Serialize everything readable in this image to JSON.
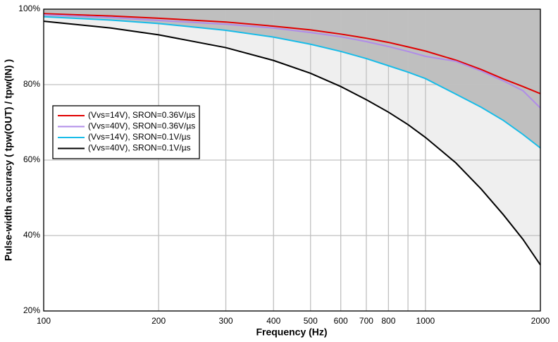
{
  "chart_data": {
    "type": "line",
    "xlabel": "Frequency (Hz)",
    "ylabel": "Pulse-width accuracy ( tpw(OUT) / tpw(IN) )",
    "xscale": "log",
    "x": [
      100,
      150,
      200,
      300,
      400,
      500,
      600,
      700,
      800,
      900,
      1000,
      1200,
      1400,
      1600,
      1800,
      2000
    ],
    "series": [
      {
        "name": "(Vvs=14V), SRON=0.36V/µs",
        "color": "#e00000",
        "values": [
          98.8,
          98.2,
          97.6,
          96.6,
          95.5,
          94.5,
          93.4,
          92.3,
          91.2,
          90.0,
          88.9,
          86.5,
          84.0,
          81.5,
          79.5,
          77.6
        ]
      },
      {
        "name": "(Vvs=40V), SRON=0.36V/µs",
        "color": "#b08ce8",
        "values": [
          98.5,
          97.8,
          97.0,
          96.0,
          95.0,
          93.8,
          92.7,
          91.4,
          90.1,
          88.8,
          87.5,
          86.2,
          83.6,
          81.0,
          78.4,
          73.8
        ]
      },
      {
        "name": "(Vvs=14V), SRON=0.1V/µs",
        "color": "#18bce8",
        "values": [
          98.0,
          97.1,
          96.2,
          94.4,
          92.6,
          90.7,
          88.8,
          86.9,
          85.0,
          83.3,
          81.6,
          77.5,
          74.0,
          70.5,
          66.8,
          63.2
        ]
      },
      {
        "name": "(Vvs=40V), SRON=0.1V/µs",
        "color": "#000000",
        "values": [
          96.8,
          95.0,
          93.2,
          89.8,
          86.4,
          83.0,
          79.5,
          76.0,
          72.7,
          69.4,
          66.0,
          59.3,
          52.3,
          45.5,
          39.0,
          32.2
        ]
      }
    ],
    "xlim": [
      100,
      2000
    ],
    "xticks": [
      100,
      200,
      300,
      400,
      500,
      600,
      700,
      800,
      1000,
      2000
    ],
    "x_minor_ticks": [
      900
    ],
    "ylim": [
      20,
      100
    ],
    "yticks": [
      {
        "value": 20,
        "label": "20%"
      },
      {
        "value": 40,
        "label": "40%"
      },
      {
        "value": 60,
        "label": "60%"
      },
      {
        "value": 80,
        "label": "80%"
      },
      {
        "value": 100,
        "label": "100%"
      }
    ],
    "grid": true,
    "legend": "upper left"
  }
}
